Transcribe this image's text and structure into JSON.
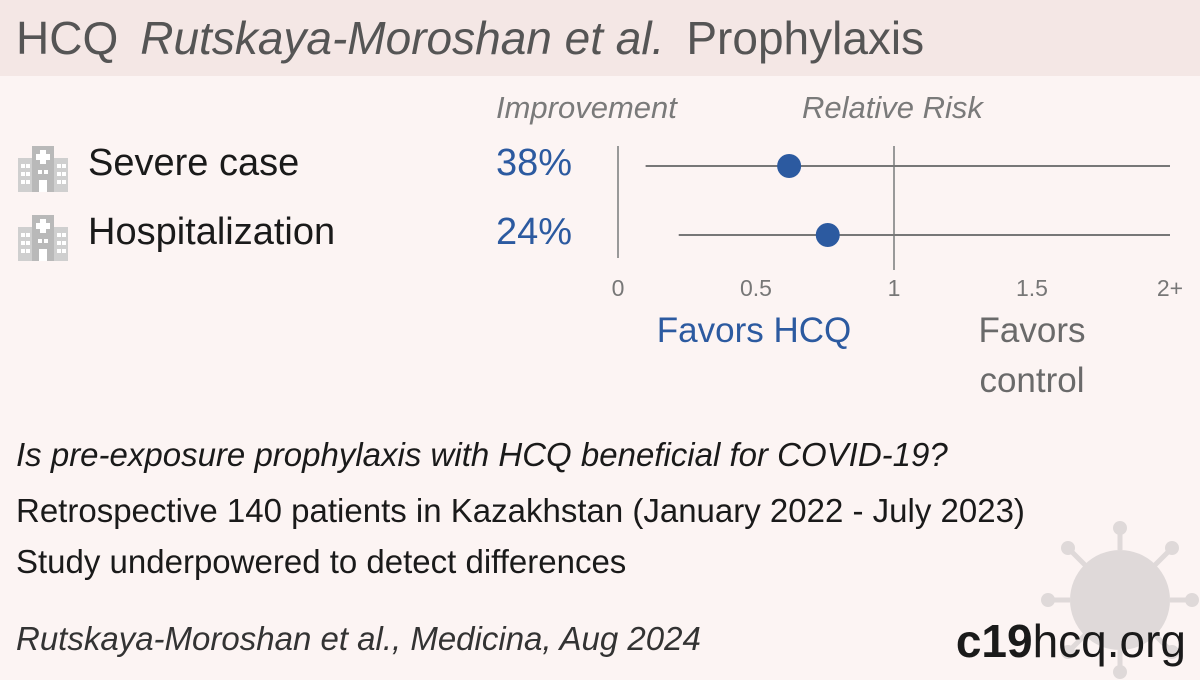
{
  "header": {
    "drug": "HCQ",
    "study": "Rutskaya-Moroshan et al.",
    "type": "Prophylaxis"
  },
  "columns": {
    "improvement": "Improvement",
    "relative_risk": "Relative Risk"
  },
  "chart_data": {
    "type": "forest",
    "x_axis": {
      "ticks": [
        "0",
        "0.5",
        "1",
        "1.5",
        "2+"
      ],
      "tick_values": [
        0,
        0.5,
        1,
        1.5,
        2
      ],
      "range": [
        0,
        2
      ],
      "reference_line": 1
    },
    "rows": [
      {
        "label": "Severe case",
        "improvement": "38%",
        "rr": 0.62,
        "ci_low": 0.1,
        "ci_high": 2
      },
      {
        "label": "Hospitalization",
        "improvement": "24%",
        "rr": 0.76,
        "ci_low": 0.22,
        "ci_high": 2
      }
    ],
    "favors_left": "Favors HCQ",
    "favors_right": "Favors control"
  },
  "colors": {
    "accent": "#2c5aa0",
    "muted": "#6a6a6a",
    "header_bg": "#f4e7e5",
    "page_bg": "#fcf4f3"
  },
  "icons": {
    "outcome": "hospital-icon",
    "decoration": "virus-icon"
  },
  "summary": {
    "question": "Is pre-exposure prophylaxis with HCQ beneficial for COVID-19?",
    "design": "Retrospective 140 patients in Kazakhstan (January 2022 - July 2023)",
    "note": "Study underpowered to detect differences"
  },
  "footer": {
    "citation": "Rutskaya-Moroshan et al., Medicina, Aug 2024",
    "brand_bold": "c19",
    "brand_rest": "hcq.org"
  }
}
